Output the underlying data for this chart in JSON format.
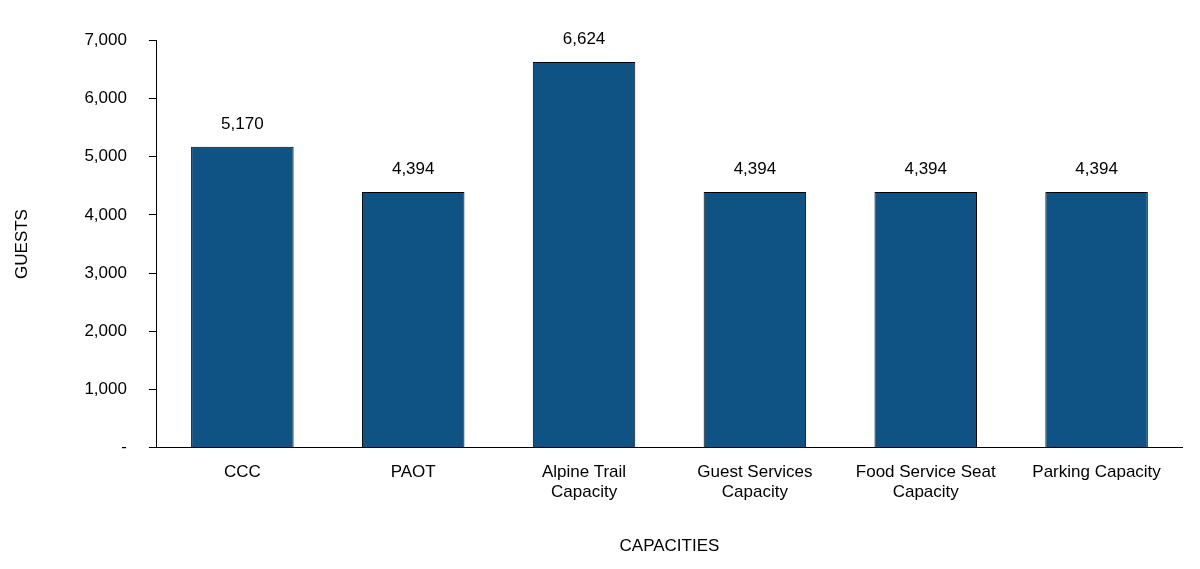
{
  "chart_data": {
    "type": "bar",
    "xlabel": "CAPACITIES",
    "ylabel": "GUESTS",
    "categories": [
      "CCC",
      "PAOT",
      "Alpine Trail Capacity",
      "Guest Services Capacity",
      "Food Service Seat Capacity",
      "Parking Capacity"
    ],
    "values": [
      5170,
      4394,
      6624,
      4394,
      4394,
      4394
    ],
    "color": "#0f5384",
    "value_labels": [
      "5,170",
      "4,394",
      "6,624",
      "4,394",
      "4,394",
      "4,394"
    ],
    "ylim": [
      0,
      7000
    ],
    "yticks": [
      {
        "value": 0,
        "label": "-"
      },
      {
        "value": 1000,
        "label": "1,000"
      },
      {
        "value": 2000,
        "label": "2,000"
      },
      {
        "value": 3000,
        "label": "3,000"
      },
      {
        "value": 4000,
        "label": "4,000"
      },
      {
        "value": 5000,
        "label": "5,000"
      },
      {
        "value": 6000,
        "label": "6,000"
      },
      {
        "value": 7000,
        "label": "7,000"
      }
    ],
    "grid": false,
    "legend": false
  }
}
